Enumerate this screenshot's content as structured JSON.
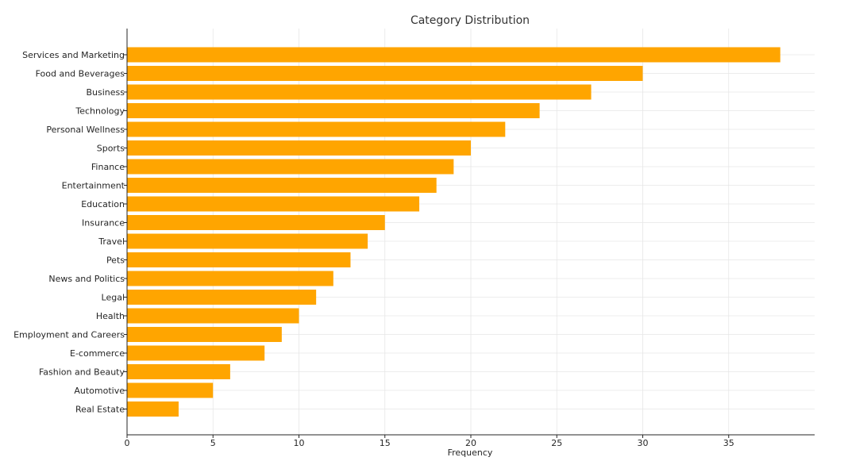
{
  "chart_data": {
    "type": "bar",
    "orientation": "horizontal",
    "title": "Category Distribution",
    "xlabel": "Frequency",
    "ylabel": "",
    "categories": [
      "Services and Marketing",
      "Food and Beverages",
      "Business",
      "Technology",
      "Personal Wellness",
      "Sports",
      "Finance",
      "Entertainment",
      "Education",
      "Insurance",
      "Travel",
      "Pets",
      "News and Politics",
      "Legal",
      "Health",
      "Employment and Careers",
      "E-commerce",
      "Fashion and Beauty",
      "Automotive",
      "Real Estate"
    ],
    "values": [
      38,
      30,
      27,
      24,
      22,
      20,
      19,
      18,
      17,
      15,
      14,
      13,
      12,
      11,
      10,
      9,
      8,
      6,
      5,
      3
    ],
    "xlim": [
      0,
      40
    ],
    "xticks": [
      0,
      5,
      10,
      15,
      20,
      25,
      30,
      35
    ],
    "grid": true,
    "bar_color": "#FFA500"
  }
}
